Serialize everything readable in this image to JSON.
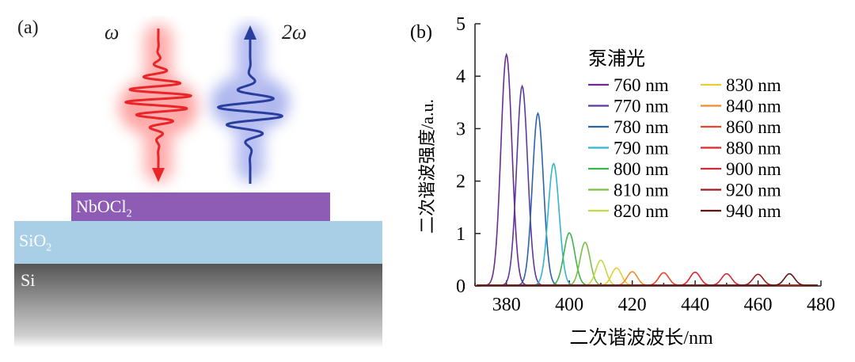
{
  "panel_a": {
    "label": "(a)",
    "omega_label": "ω",
    "two_omega_label": "2ω",
    "layers": {
      "nbocl2": {
        "text_main": "NbOCl",
        "text_sub": "2",
        "color": "#8e5bb5"
      },
      "sio2": {
        "text_main": "SiO",
        "text_sub": "2",
        "color": "#a9cfe6"
      },
      "si": {
        "text": "Si",
        "color_top": "#5a5a5a",
        "color_bottom": "#ffffff"
      }
    },
    "beam_colors": {
      "red": "#e8262a",
      "blue": "#2a3e9e"
    }
  },
  "chart_data": {
    "type": "line",
    "panel_label": "(b)",
    "title": "",
    "xlabel": "二次谐波波长/nm",
    "ylabel": "二次谐波强度/a.u.",
    "xlim": [
      370,
      480
    ],
    "ylim": [
      0,
      5
    ],
    "xticks": [
      380,
      400,
      420,
      440,
      460,
      480
    ],
    "yticks": [
      0,
      1,
      2,
      3,
      4,
      5
    ],
    "legend_title": "泵浦光",
    "series": [
      {
        "name": "760 nm",
        "peak_x": 380,
        "peak_y": 4.4,
        "color": "#6a2c91"
      },
      {
        "name": "770 nm",
        "peak_x": 385,
        "peak_y": 3.8,
        "color": "#5b3a9e"
      },
      {
        "name": "780 nm",
        "peak_x": 390,
        "peak_y": 3.28,
        "color": "#2d63ad"
      },
      {
        "name": "790 nm",
        "peak_x": 395,
        "peak_y": 2.32,
        "color": "#2fb7cf"
      },
      {
        "name": "800 nm",
        "peak_x": 400,
        "peak_y": 1.0,
        "color": "#3cb54a"
      },
      {
        "name": "810 nm",
        "peak_x": 405,
        "peak_y": 0.82,
        "color": "#7ac143"
      },
      {
        "name": "820 nm",
        "peak_x": 410,
        "peak_y": 0.48,
        "color": "#c3d944"
      },
      {
        "name": "830 nm",
        "peak_x": 415,
        "peak_y": 0.33,
        "color": "#e5cf2f"
      },
      {
        "name": "840 nm",
        "peak_x": 420,
        "peak_y": 0.26,
        "color": "#f08b2b"
      },
      {
        "name": "860 nm",
        "peak_x": 430,
        "peak_y": 0.24,
        "color": "#e8452f"
      },
      {
        "name": "880 nm",
        "peak_x": 440,
        "peak_y": 0.25,
        "color": "#e0252b"
      },
      {
        "name": "900 nm",
        "peak_x": 450,
        "peak_y": 0.22,
        "color": "#d22a34"
      },
      {
        "name": "920 nm",
        "peak_x": 460,
        "peak_y": 0.21,
        "color": "#9b1b1f"
      },
      {
        "name": "940 nm",
        "peak_x": 470,
        "peak_y": 0.22,
        "color": "#5e1414"
      }
    ]
  }
}
